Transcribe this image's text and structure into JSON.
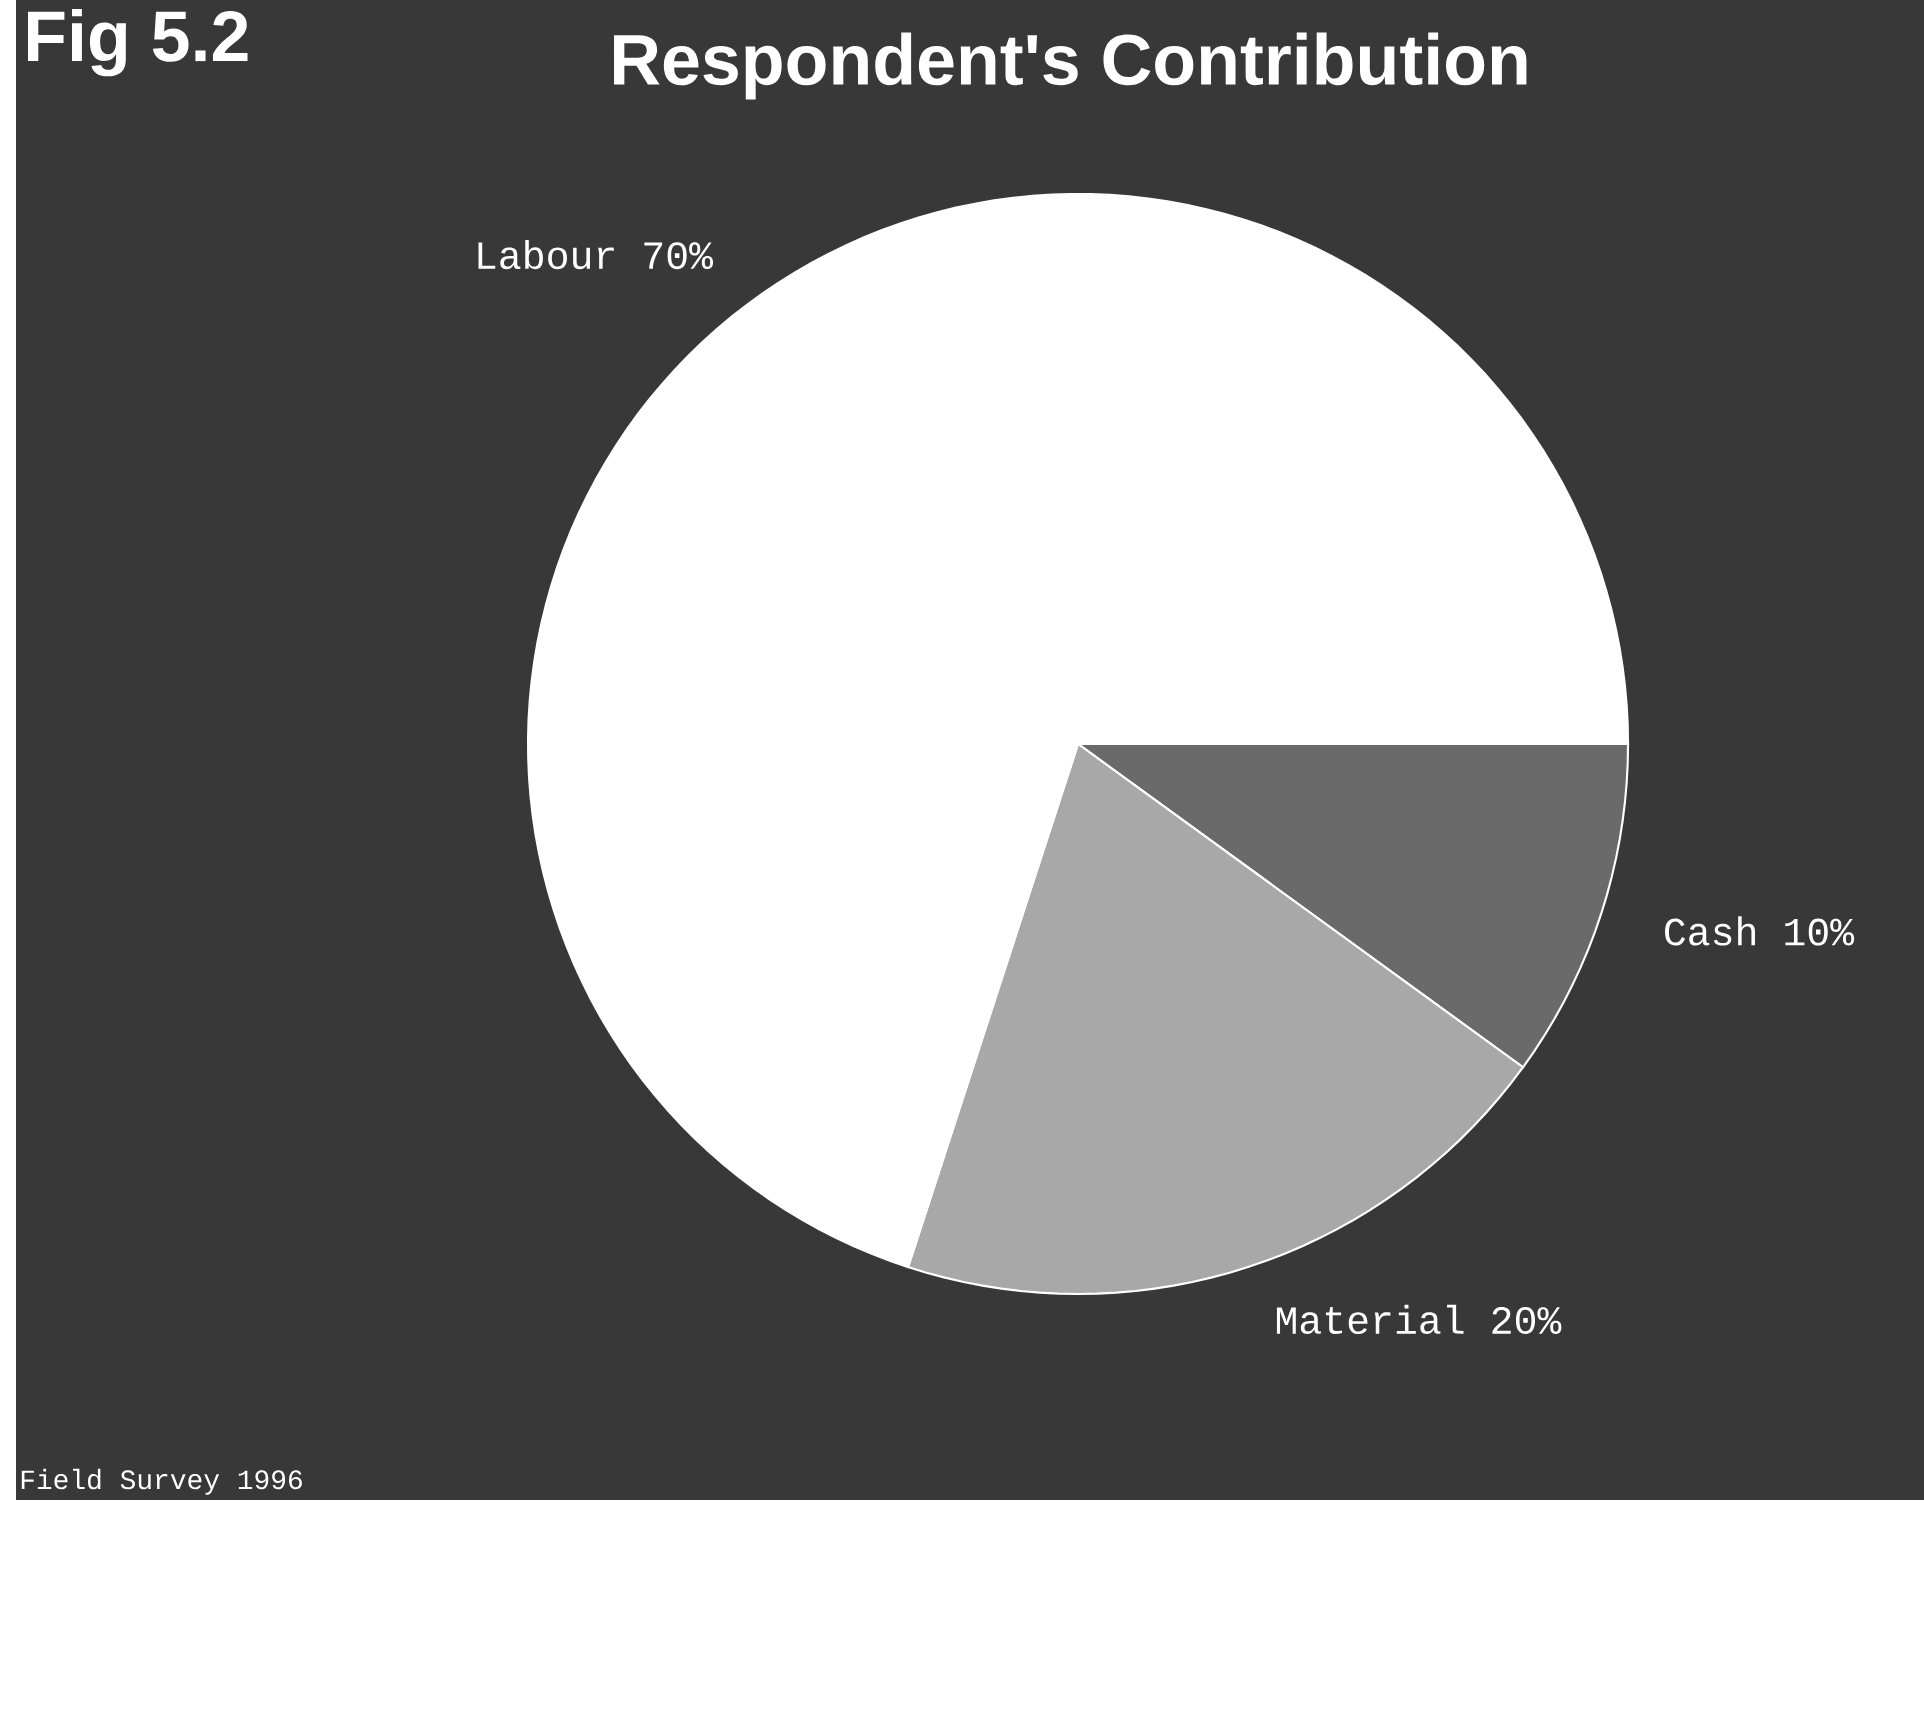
{
  "chart_data": {
    "type": "pie",
    "title": "Respondent's Contribution",
    "categories": [
      "Cash",
      "Material",
      "Labour"
    ],
    "values": [
      10,
      20,
      70
    ],
    "value_labels": [
      "10%",
      "20%",
      "70%"
    ],
    "colors": [
      "#6a6a6a",
      "#a8a8a8",
      "#ffffff"
    ],
    "legend": false,
    "annotations": [
      "Fig 5.2",
      "Field Survey 1996"
    ]
  }
}
